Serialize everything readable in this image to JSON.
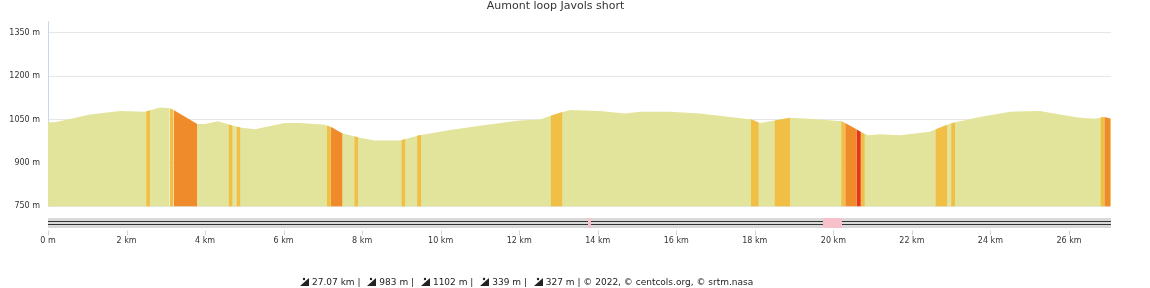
{
  "chart_data": {
    "type": "area",
    "title": "Aumont loop Javols short",
    "grid": "y",
    "xlim": [
      0,
      27.07
    ],
    "xticks": [
      {
        "value": 0,
        "label": "0 m"
      },
      {
        "value": 2,
        "label": "2 km"
      },
      {
        "value": 4,
        "label": "4 km"
      },
      {
        "value": 6,
        "label": "6 km"
      },
      {
        "value": 8,
        "label": "8 km"
      },
      {
        "value": 10,
        "label": "10 km"
      },
      {
        "value": 12,
        "label": "12 km"
      },
      {
        "value": 14,
        "label": "14 km"
      },
      {
        "value": 16,
        "label": "16 km"
      },
      {
        "value": 18,
        "label": "18 km"
      },
      {
        "value": 20,
        "label": "20 km"
      },
      {
        "value": 22,
        "label": "22 km"
      },
      {
        "value": 24,
        "label": "24 km"
      },
      {
        "value": 26,
        "label": "26 km"
      }
    ],
    "ylim": [
      750,
      1390
    ],
    "yticks": [
      {
        "value": 750,
        "label": "750 m"
      },
      {
        "value": 900,
        "label": "900 m"
      },
      {
        "value": 1050,
        "label": "1050 m"
      },
      {
        "value": 1200,
        "label": "1200 m"
      },
      {
        "value": 1350,
        "label": "1350 m"
      }
    ],
    "annotations": [
      "27.07 km |",
      "983 m |",
      "1102 m |",
      "339 m |",
      "327 m |",
      "© 2022, © centcols.org, © srtm.nasa"
    ],
    "series": [
      {
        "color": "#e3e49b",
        "x": [
          0,
          0.18,
          1.07,
          1.83,
          2.47,
          2.85,
          3.1,
          3.49,
          3.79,
          4.0,
          4.33,
          4.63,
          4.89,
          5.27,
          6.03,
          6.4,
          7.05,
          7.51,
          7.94,
          8.33,
          8.96,
          9.22,
          9.47,
          10.24,
          11.0,
          12.02,
          12.53,
          12.9,
          13.29,
          14.06,
          14.69,
          15.07,
          15.84,
          16.6,
          17.37,
          17.93,
          18.13,
          18.51,
          18.9,
          19.4,
          20.22,
          20.42,
          20.68,
          20.88,
          21.19,
          21.7,
          22.46,
          22.71,
          23.02,
          23.73,
          24.5,
          25.26,
          25.77,
          26.28,
          26.66,
          26.89,
          27.07
        ],
        "values": [
          1041,
          1041,
          1068,
          1080,
          1077,
          1092,
          1089,
          null,
          1035,
          1035,
          1044,
          1032,
          1023,
          1017,
          1038,
          1038,
          1032,
          1002,
          987,
          978,
          978,
          987,
          996,
          1014,
          1029,
          1047,
          1050,
          1068,
          1083,
          1080,
          1071,
          1077,
          1077,
          1071,
          1059,
          1050,
          1038,
          1047,
          1056,
          1053,
          1044,
          null,
          1008,
          996,
          999,
          996,
          1008,
          1023,
          1038,
          1059,
          1077,
          1080,
          1068,
          1056,
          1053,
          1059,
          1053
        ]
      },
      {
        "color": "#f1bf45",
        "x": [
          2.5,
          2.6
        ],
        "values": [
          1078,
          1082
        ]
      },
      {
        "color": "#f1bf45",
        "x": [
          3.1,
          3.2
        ],
        "values": [
          1089,
          1083
        ]
      },
      {
        "color": "#f08b2b",
        "x": [
          3.2,
          3.8
        ],
        "values": [
          1083,
          1035
        ]
      },
      {
        "color": "#f1bf45",
        "x": [
          4.6,
          4.7
        ],
        "values": [
          1033,
          1030
        ]
      },
      {
        "color": "#f1bf45",
        "x": [
          4.8,
          4.9
        ],
        "values": [
          1026,
          1023
        ]
      },
      {
        "color": "#f1bf45",
        "x": [
          7.1,
          7.2
        ],
        "values": [
          1030,
          1025
        ]
      },
      {
        "color": "#f08b2b",
        "x": [
          7.2,
          7.5
        ],
        "values": [
          1025,
          1002
        ]
      },
      {
        "color": "#f1bf45",
        "x": [
          7.8,
          7.9
        ],
        "values": [
          992,
          988
        ]
      },
      {
        "color": "#f1bf45",
        "x": [
          9.0,
          9.1
        ],
        "values": [
          979,
          983
        ]
      },
      {
        "color": "#f1bf45",
        "x": [
          9.4,
          9.5
        ],
        "values": [
          994,
          997
        ]
      },
      {
        "color": "#f1bf45",
        "x": [
          12.8,
          13.1
        ],
        "values": [
          1063,
          1076
        ]
      },
      {
        "color": "#f1bf45",
        "x": [
          17.9,
          18.1
        ],
        "values": [
          1051,
          1040
        ]
      },
      {
        "color": "#f1bf45",
        "x": [
          18.5,
          18.9
        ],
        "values": [
          1047,
          1056
        ]
      },
      {
        "color": "#f1bf45",
        "x": [
          20.2,
          20.3
        ],
        "values": [
          1044,
          1038
        ]
      },
      {
        "color": "#f08b2b",
        "x": [
          20.3,
          20.6
        ],
        "values": [
          1038,
          1016
        ]
      },
      {
        "color": "#e5341f",
        "x": [
          20.6,
          20.7
        ],
        "values": [
          1016,
          1007
        ]
      },
      {
        "color": "#f1bf45",
        "x": [
          20.7,
          20.8
        ],
        "values": [
          1007,
          1000
        ]
      },
      {
        "color": "#f1bf45",
        "x": [
          22.6,
          22.9
        ],
        "values": [
          1016,
          1032
        ]
      },
      {
        "color": "#f1bf45",
        "x": [
          23.0,
          23.1
        ],
        "values": [
          1037,
          1040
        ]
      },
      {
        "color": "#f1bf45",
        "x": [
          26.8,
          26.9
        ],
        "values": [
          1057,
          1059
        ]
      },
      {
        "color": "#f08b2b",
        "x": [
          26.9,
          27.05
        ],
        "values": [
          1059,
          1054
        ]
      },
      {
        "color": "#f1bf45",
        "x": [
          27.05,
          27.07
        ],
        "values": [
          1054,
          1053
        ]
      }
    ]
  }
}
